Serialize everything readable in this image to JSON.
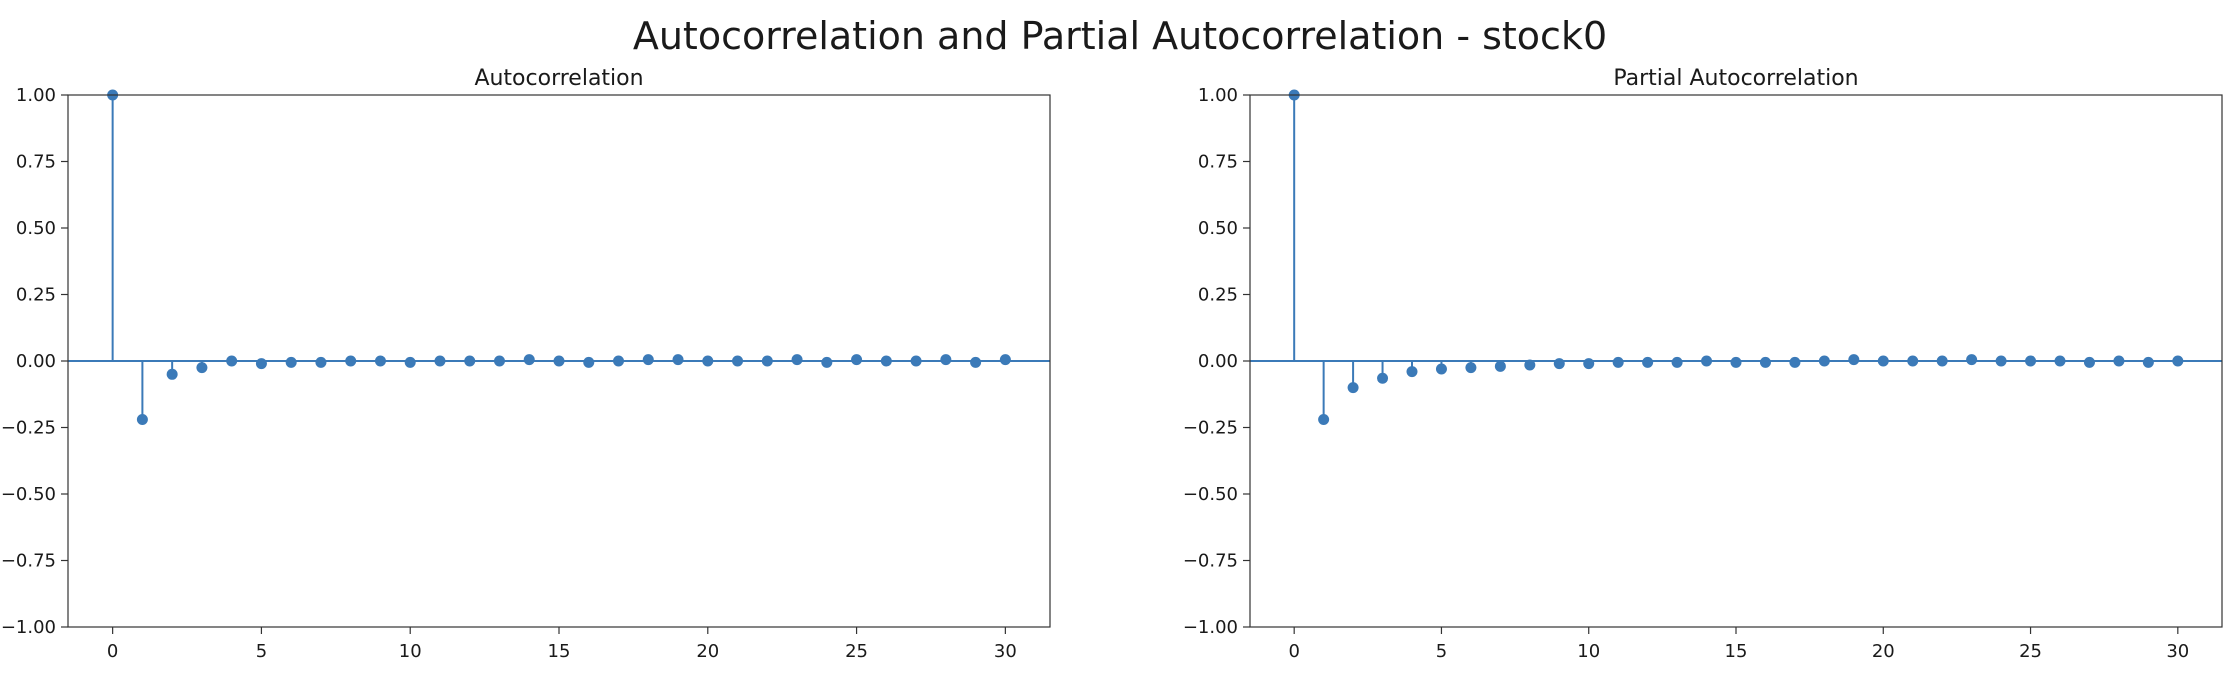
{
  "suptitle": "Autocorrelation and Partial Autocorrelation - stock0",
  "colors": {
    "stem": "#3b7ab8",
    "marker": "#3b7ab8",
    "axis": "#333333"
  },
  "chart_data": [
    {
      "type": "stem",
      "title": "Autocorrelation",
      "xlabel": "",
      "ylabel": "",
      "xlim": [
        -1.5,
        31.5
      ],
      "ylim": [
        -1.0,
        1.0
      ],
      "xticks": [
        0,
        5,
        10,
        15,
        20,
        25,
        30
      ],
      "xtick_labels": [
        "0",
        "5",
        "10",
        "15",
        "20",
        "25",
        "30"
      ],
      "yticks": [
        -1.0,
        -0.75,
        -0.5,
        -0.25,
        0.0,
        0.25,
        0.5,
        0.75,
        1.0
      ],
      "ytick_labels": [
        "−1.00",
        "−0.75",
        "−0.50",
        "−0.25",
        "0.00",
        "0.25",
        "0.50",
        "0.75",
        "1.00"
      ],
      "grid": false,
      "x": [
        0,
        1,
        2,
        3,
        4,
        5,
        6,
        7,
        8,
        9,
        10,
        11,
        12,
        13,
        14,
        15,
        16,
        17,
        18,
        19,
        20,
        21,
        22,
        23,
        24,
        25,
        26,
        27,
        28,
        29,
        30
      ],
      "values": [
        1.0,
        -0.22,
        -0.05,
        -0.025,
        0.0,
        -0.01,
        -0.005,
        -0.005,
        0.0,
        0.0,
        -0.005,
        0.0,
        0.0,
        0.0,
        0.005,
        0.0,
        -0.005,
        0.0,
        0.005,
        0.005,
        0.0,
        0.0,
        0.0,
        0.005,
        -0.005,
        0.005,
        0.0,
        0.0,
        0.005,
        -0.005,
        0.005
      ]
    },
    {
      "type": "stem",
      "title": "Partial Autocorrelation",
      "xlabel": "",
      "ylabel": "",
      "xlim": [
        -1.5,
        31.5
      ],
      "ylim": [
        -1.0,
        1.0
      ],
      "xticks": [
        0,
        5,
        10,
        15,
        20,
        25,
        30
      ],
      "xtick_labels": [
        "0",
        "5",
        "10",
        "15",
        "20",
        "25",
        "30"
      ],
      "yticks": [
        -1.0,
        -0.75,
        -0.5,
        -0.25,
        0.0,
        0.25,
        0.5,
        0.75,
        1.0
      ],
      "ytick_labels": [
        "−1.00",
        "−0.75",
        "−0.50",
        "−0.25",
        "0.00",
        "0.25",
        "0.50",
        "0.75",
        "1.00"
      ],
      "grid": false,
      "x": [
        0,
        1,
        2,
        3,
        4,
        5,
        6,
        7,
        8,
        9,
        10,
        11,
        12,
        13,
        14,
        15,
        16,
        17,
        18,
        19,
        20,
        21,
        22,
        23,
        24,
        25,
        26,
        27,
        28,
        29,
        30
      ],
      "values": [
        1.0,
        -0.22,
        -0.1,
        -0.065,
        -0.04,
        -0.03,
        -0.025,
        -0.02,
        -0.015,
        -0.01,
        -0.01,
        -0.005,
        -0.005,
        -0.005,
        0.0,
        -0.005,
        -0.005,
        -0.005,
        0.0,
        0.005,
        0.0,
        0.0,
        0.0,
        0.005,
        0.0,
        0.0,
        0.0,
        -0.005,
        0.0,
        -0.005,
        0.0
      ]
    }
  ]
}
